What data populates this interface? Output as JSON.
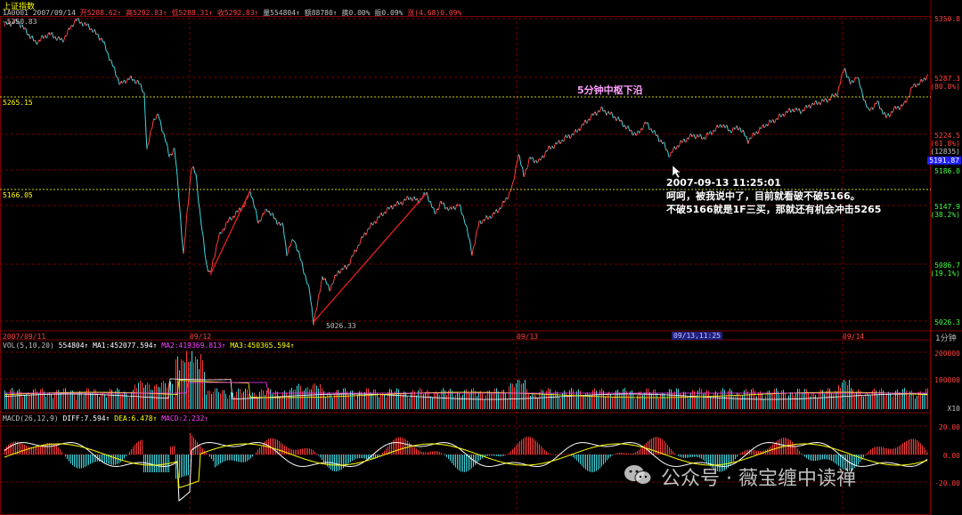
{
  "title": "上证指数",
  "quote": {
    "code": "1A0001",
    "date": "2007/09/14",
    "open": "开5288.62↑",
    "high": "高5292.83↑",
    "low": "低5288.31↑",
    "close": "收5292.83↑",
    "volume": "量554804↑",
    "amount": "额88780↑",
    "turnover": "换0.00%",
    "amplitude": "振0.09%",
    "change": "涨(4.68)0.09%"
  },
  "price_axis": {
    "labels": [
      "5350.8",
      "5287.3",
      "(80.8%)",
      "5224.5",
      "(61.8%)",
      "(12835)",
      "5186.0",
      "5147.9",
      "(38.2%)",
      "5086.7",
      "(19.1%)",
      "5026.3"
    ],
    "current": "5191.87"
  },
  "left_labels": {
    "top_high": "5350.83",
    "zs_upper": "5265.15",
    "zs_lower": "5166.05",
    "low_marker": "5026.33"
  },
  "time_axis": [
    "2007/09/11",
    "09/12",
    "09/13",
    "09/13,11:25",
    "09/14"
  ],
  "period": "1分钟",
  "zs_annotation": "5分钟中枢下沿",
  "annotation": {
    "timestamp": "2007-09-13 11:25:01",
    "line1": "呵呵，被我说中了，目前就看破不破5166。",
    "line2": "不破5166就是1F三买，那就还有机会冲击5265"
  },
  "vol": {
    "header": "VOL(5,10,20)",
    "value": "554804↑",
    "ma1": "MA1:452077.594↑",
    "ma2": "MA2:419369.813↑",
    "ma3": "MA3:450365.594↑",
    "axis": [
      "200000",
      "100000",
      "X10"
    ]
  },
  "macd": {
    "header": "MACD(26,12,9)",
    "diff": "DIFF:7.594↑",
    "dea": "DEA:6.478↑",
    "macd": "MACD:2.232↑",
    "axis": [
      "20.00",
      "0.00",
      "-20.00"
    ]
  },
  "watermark": "公众号 · 薇宝缠中读禅",
  "colors": {
    "up": "#ff3b3b",
    "down": "#3fd8e0",
    "grid": "#7a0000",
    "diff": "#ffffff",
    "dea": "#ffff00"
  },
  "chart_data": {
    "type": "line",
    "x": [
      "2007/09/11",
      "09/12",
      "09/13",
      "09/14"
    ],
    "price_range": [
      5026.3,
      5350.8
    ],
    "zs_levels": [
      5265.15,
      5166.05
    ],
    "highs_lows": [
      5350.83,
      5026.33
    ]
  }
}
